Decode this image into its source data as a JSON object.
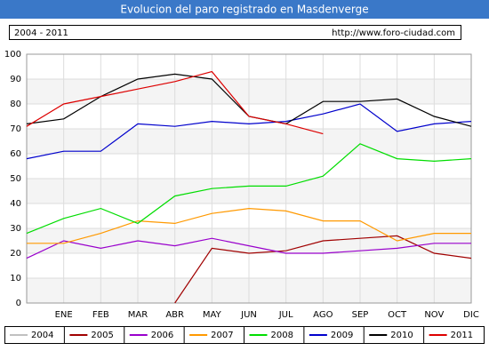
{
  "chart_data": {
    "type": "line",
    "title": "Evolucion del paro registrado en Masdenverge",
    "subtitle": "2004 - 2011",
    "source": "http://www.foro-ciudad.com",
    "categories": [
      null,
      "ENE",
      "FEB",
      "MAR",
      "ABR",
      "MAY",
      "JUN",
      "JUL",
      "AGO",
      "SEP",
      "OCT",
      "NOV",
      "DIC"
    ],
    "series": [
      {
        "name": "2004",
        "color": "#c0c0c0",
        "values": [
          null,
          null,
          null,
          null,
          null,
          null,
          null,
          null,
          null,
          null,
          null,
          null,
          null
        ]
      },
      {
        "name": "2005",
        "color": "#a00000",
        "values": [
          null,
          null,
          null,
          null,
          0,
          22,
          20,
          21,
          25,
          26,
          27,
          20,
          18
        ]
      },
      {
        "name": "2006",
        "color": "#9900cc",
        "values": [
          18,
          25,
          22,
          25,
          23,
          26,
          23,
          20,
          20,
          21,
          22,
          24,
          24
        ]
      },
      {
        "name": "2007",
        "color": "#ff9900",
        "values": [
          24,
          24,
          28,
          33,
          32,
          36,
          38,
          37,
          33,
          33,
          25,
          28,
          28
        ]
      },
      {
        "name": "2008",
        "color": "#00dd00",
        "values": [
          28,
          34,
          38,
          32,
          43,
          46,
          47,
          47,
          51,
          64,
          58,
          57,
          58
        ]
      },
      {
        "name": "2009",
        "color": "#0000cc",
        "values": [
          58,
          61,
          61,
          72,
          71,
          73,
          72,
          73,
          76,
          80,
          69,
          72,
          73
        ]
      },
      {
        "name": "2010",
        "color": "#000000",
        "values": [
          72,
          74,
          83,
          90,
          92,
          90,
          75,
          72,
          81,
          81,
          82,
          75,
          71
        ]
      },
      {
        "name": "2011",
        "color": "#dd0000",
        "values": [
          71,
          80,
          83,
          86,
          89,
          93,
          75,
          72,
          68,
          null,
          null,
          null,
          null
        ]
      }
    ],
    "ylim": [
      0,
      100
    ],
    "yticks": [
      0,
      10,
      20,
      30,
      40,
      50,
      60,
      70,
      80,
      90,
      100
    ],
    "grid": true
  }
}
